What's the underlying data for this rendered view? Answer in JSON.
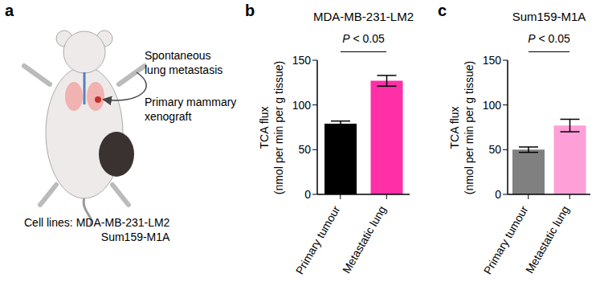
{
  "panel_a": {
    "label": "a",
    "annotations": [
      [
        "Spontaneous",
        "lung metastasis"
      ],
      [
        "Primary mammary",
        "xenograft"
      ]
    ],
    "cell_lines_label": "Cell lines:",
    "cell_lines": [
      "MDA-MB-231-LM2",
      "Sum159-M1A"
    ]
  },
  "chart_data": [
    {
      "panel": "b",
      "type": "bar",
      "title": "MDA-MB-231-LM2",
      "ylabel": [
        "TCA flux",
        "(nmol per min per g tissue)"
      ],
      "categories": [
        "Primary tumour",
        "Metastatic lung"
      ],
      "values": [
        79,
        127
      ],
      "errors": [
        3,
        6
      ],
      "colors": [
        "#000000",
        "#ff2fa8"
      ],
      "ylim": [
        0,
        150
      ],
      "yticks": [
        0,
        50,
        100,
        150
      ],
      "annotation": "P < 0.05"
    },
    {
      "panel": "c",
      "type": "bar",
      "title": "Sum159-M1A",
      "ylabel": [
        "TCA flux",
        "(nmol per min per g tissue)"
      ],
      "categories": [
        "Primary tumour",
        "Metastatic lung"
      ],
      "values": [
        50,
        77
      ],
      "errors": [
        3,
        7
      ],
      "colors": [
        "#808080",
        "#ff9fd8"
      ],
      "ylim": [
        0,
        150
      ],
      "yticks": [
        0,
        50,
        100,
        150
      ],
      "annotation": "P < 0.05"
    }
  ]
}
